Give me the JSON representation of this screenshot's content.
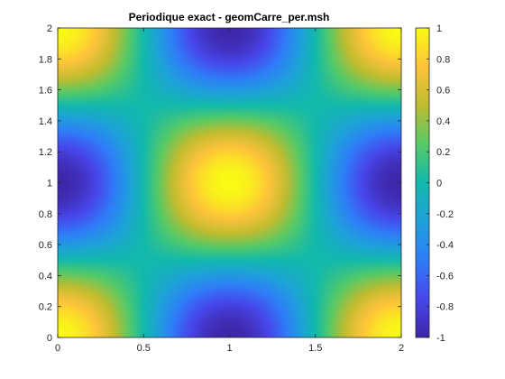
{
  "chart_data": {
    "type": "heatmap",
    "title": "Periodique exact - geomCarre_per.msh",
    "xlabel": "",
    "ylabel": "",
    "function": "cos(pi*x)*cos(pi*y)",
    "xlim": [
      0,
      2
    ],
    "ylim": [
      0,
      2
    ],
    "zlim": [
      -1,
      1
    ],
    "x_ticks": [
      "0",
      "0.5",
      "1",
      "1.5",
      "2"
    ],
    "y_ticks": [
      "0",
      "0.2",
      "0.4",
      "0.6",
      "0.8",
      "1",
      "1.2",
      "1.4",
      "1.6",
      "1.8",
      "2"
    ],
    "colorbar": {
      "ticks": [
        "-1",
        "-0.8",
        "-0.6",
        "-0.4",
        "-0.2",
        "0",
        "0.2",
        "0.4",
        "0.6",
        "0.8",
        "1"
      ],
      "colormap": "parula"
    },
    "extrema": [
      {
        "x": 0,
        "y": 0,
        "value": 1
      },
      {
        "x": 2,
        "y": 0,
        "value": 1
      },
      {
        "x": 0,
        "y": 2,
        "value": 1
      },
      {
        "x": 2,
        "y": 2,
        "value": 1
      },
      {
        "x": 1,
        "y": 1,
        "value": 1
      },
      {
        "x": 1,
        "y": 0,
        "value": -1
      },
      {
        "x": 1,
        "y": 2,
        "value": -1
      },
      {
        "x": 0,
        "y": 1,
        "value": -1
      },
      {
        "x": 2,
        "y": 1,
        "value": -1
      }
    ],
    "grid": false
  },
  "colors": {
    "axis": "#262626",
    "background": "#ffffff"
  }
}
